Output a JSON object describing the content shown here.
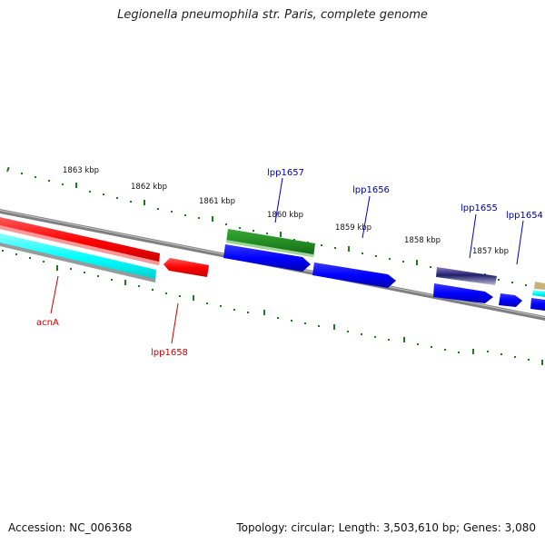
{
  "title": "Legionella pneumophila str. Paris, complete genome",
  "footer": {
    "accession": "Accession: NC_006368",
    "topology": "Topology: circular; Length: 3,503,610 bp; Genes: 3,080"
  },
  "colors": {
    "backbone": "#808080",
    "ticks": "#1f7a1f",
    "red_feature": "#ff0000",
    "blue_feature": "#0000ff",
    "green_feature": "#228b22",
    "cyan_feature": "#00ffff",
    "red_label": "#cc0000",
    "blue_label": "#0000aa"
  },
  "tick_labels": [
    {
      "text": "1863 kbp"
    },
    {
      "text": "1862 kbp"
    },
    {
      "text": "1861 kbp"
    },
    {
      "text": "1860 kbp"
    },
    {
      "text": "1859 kbp"
    },
    {
      "text": "1858 kbp"
    },
    {
      "text": "1857 kbp"
    }
  ],
  "gene_labels": {
    "lpp1657": "lpp1657",
    "lpp1656": "lpp1656",
    "lpp1655": "lpp1655",
    "lpp1654": "lpp1654",
    "acnA": "acnA",
    "lpp1658": "lpp1658"
  }
}
